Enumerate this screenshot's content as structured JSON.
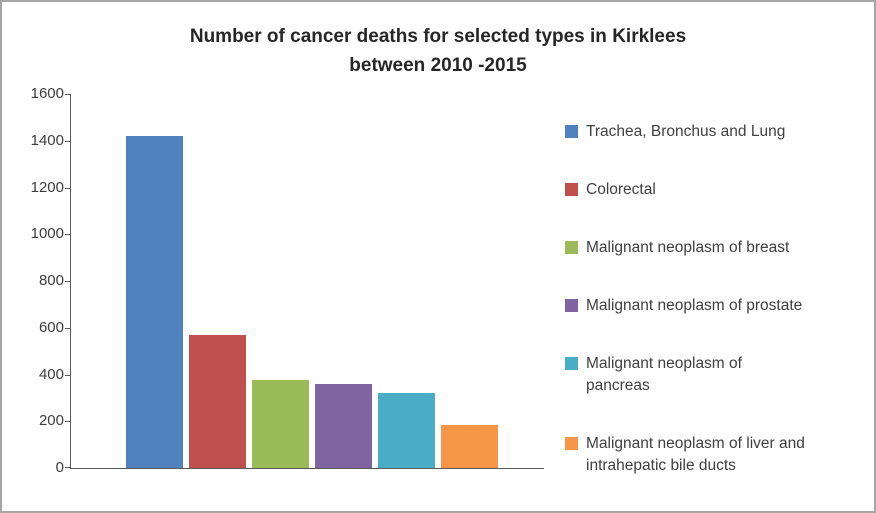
{
  "chart": {
    "title_line1": "Number of cancer deaths for selected types in Kirklees",
    "title_line2": "between 2010 -2015"
  },
  "chart_data": {
    "type": "bar",
    "title": "Number of cancer deaths for selected types in Kirklees between 2010 -2015",
    "categories": [
      "Trachea, Bronchus and Lung",
      "Colorectal",
      "Malignant neoplasm of breast",
      "Malignant neoplasm of prostate",
      "Malignant neoplasm of pancreas",
      "Malignant neoplasm of liver and intrahepatic bile ducts"
    ],
    "legend_labels": [
      "Trachea, Bronchus and Lung",
      "Colorectal",
      "Malignant neoplasm of breast",
      "Malignant neoplasm of prostate",
      "Malignant neoplasm of\npancreas",
      "Malignant neoplasm of liver and\nintrahepatic bile ducts"
    ],
    "values": [
      1420,
      570,
      375,
      360,
      320,
      185
    ],
    "colors": [
      "#4F81BD",
      "#C0504D",
      "#9BBB59",
      "#8064A2",
      "#4BACC6",
      "#F79646"
    ],
    "xlabel": "",
    "ylabel": "",
    "ylim": [
      0,
      1600
    ],
    "yticks": [
      0,
      200,
      400,
      600,
      800,
      1000,
      1200,
      1400,
      1600
    ],
    "grid": false,
    "legend_position": "right"
  }
}
